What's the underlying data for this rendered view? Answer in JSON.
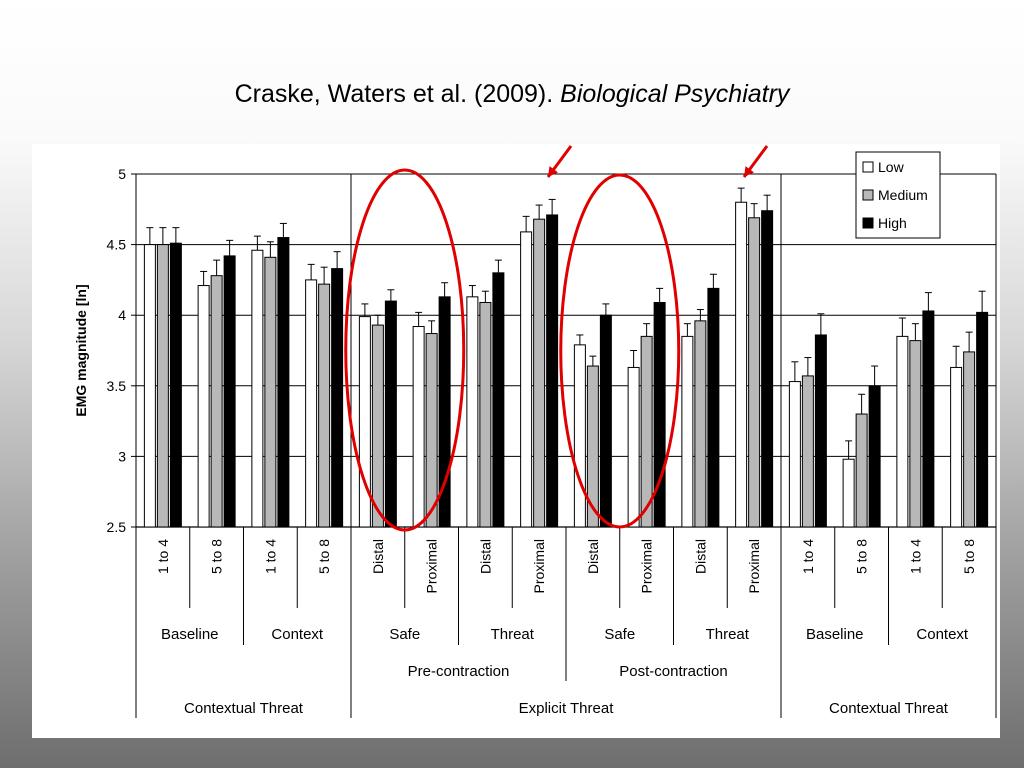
{
  "slide": {
    "title_authors": "Craske, Waters et al. (2009). ",
    "title_journal": "Biological Psychiatry"
  },
  "chart_data": {
    "type": "bar",
    "ylabel": "EMG magnitude [ln]",
    "xlabel": "",
    "ylim": [
      2.5,
      5
    ],
    "yticks": [
      "2.5",
      "3",
      "3.5",
      "4",
      "4.5",
      "5"
    ],
    "grid": "horizontal",
    "legend_position": "top-right",
    "categories": [
      "1 to 4",
      "5 to 8",
      "1 to 4",
      "5 to 8",
      "Distal",
      "Proximal",
      "Distal",
      "Proximal",
      "Distal",
      "Proximal",
      "Distal",
      "Proximal",
      "1 to 4",
      "5 to 8",
      "1 to 4",
      "5 to 8"
    ],
    "series": [
      {
        "name": "Low",
        "color": "#ffffff",
        "values": [
          4.5,
          4.21,
          4.46,
          4.25,
          3.99,
          3.92,
          4.13,
          4.59,
          3.79,
          3.63,
          3.85,
          4.8,
          3.53,
          2.98,
          3.85,
          3.63
        ],
        "errors": [
          0.12,
          0.1,
          0.1,
          0.11,
          0.09,
          0.1,
          0.08,
          0.11,
          0.07,
          0.12,
          0.09,
          0.1,
          0.14,
          0.13,
          0.13,
          0.15
        ]
      },
      {
        "name": "Medium",
        "color": "#b8b8b8",
        "values": [
          4.5,
          4.28,
          4.41,
          4.22,
          3.93,
          3.87,
          4.09,
          4.68,
          3.64,
          3.85,
          3.96,
          4.69,
          3.57,
          3.3,
          3.82,
          3.74
        ],
        "errors": [
          0.12,
          0.11,
          0.11,
          0.12,
          0.07,
          0.09,
          0.08,
          0.1,
          0.07,
          0.09,
          0.08,
          0.1,
          0.13,
          0.14,
          0.12,
          0.14
        ]
      },
      {
        "name": "High",
        "color": "#000000",
        "values": [
          4.51,
          4.42,
          4.55,
          4.33,
          4.1,
          4.13,
          4.3,
          4.71,
          4.0,
          4.09,
          4.19,
          4.74,
          3.86,
          3.5,
          4.03,
          4.02
        ],
        "errors": [
          0.11,
          0.11,
          0.1,
          0.12,
          0.08,
          0.1,
          0.09,
          0.11,
          0.08,
          0.1,
          0.1,
          0.11,
          0.15,
          0.14,
          0.13,
          0.15
        ]
      }
    ],
    "group_labels_level2": [
      "Baseline",
      "Context",
      "Safe",
      "Threat",
      "Safe",
      "Threat",
      "Baseline",
      "Context"
    ],
    "group_labels_level3": [
      "Pre-contraction",
      "Post-contraction"
    ],
    "group_labels_level4": [
      "Contextual Threat",
      "Explicit Threat",
      "Contextual Threat"
    ],
    "annotations": [
      "red circles around Safe groups",
      "red arrows pointing to Threat Proximal"
    ]
  }
}
